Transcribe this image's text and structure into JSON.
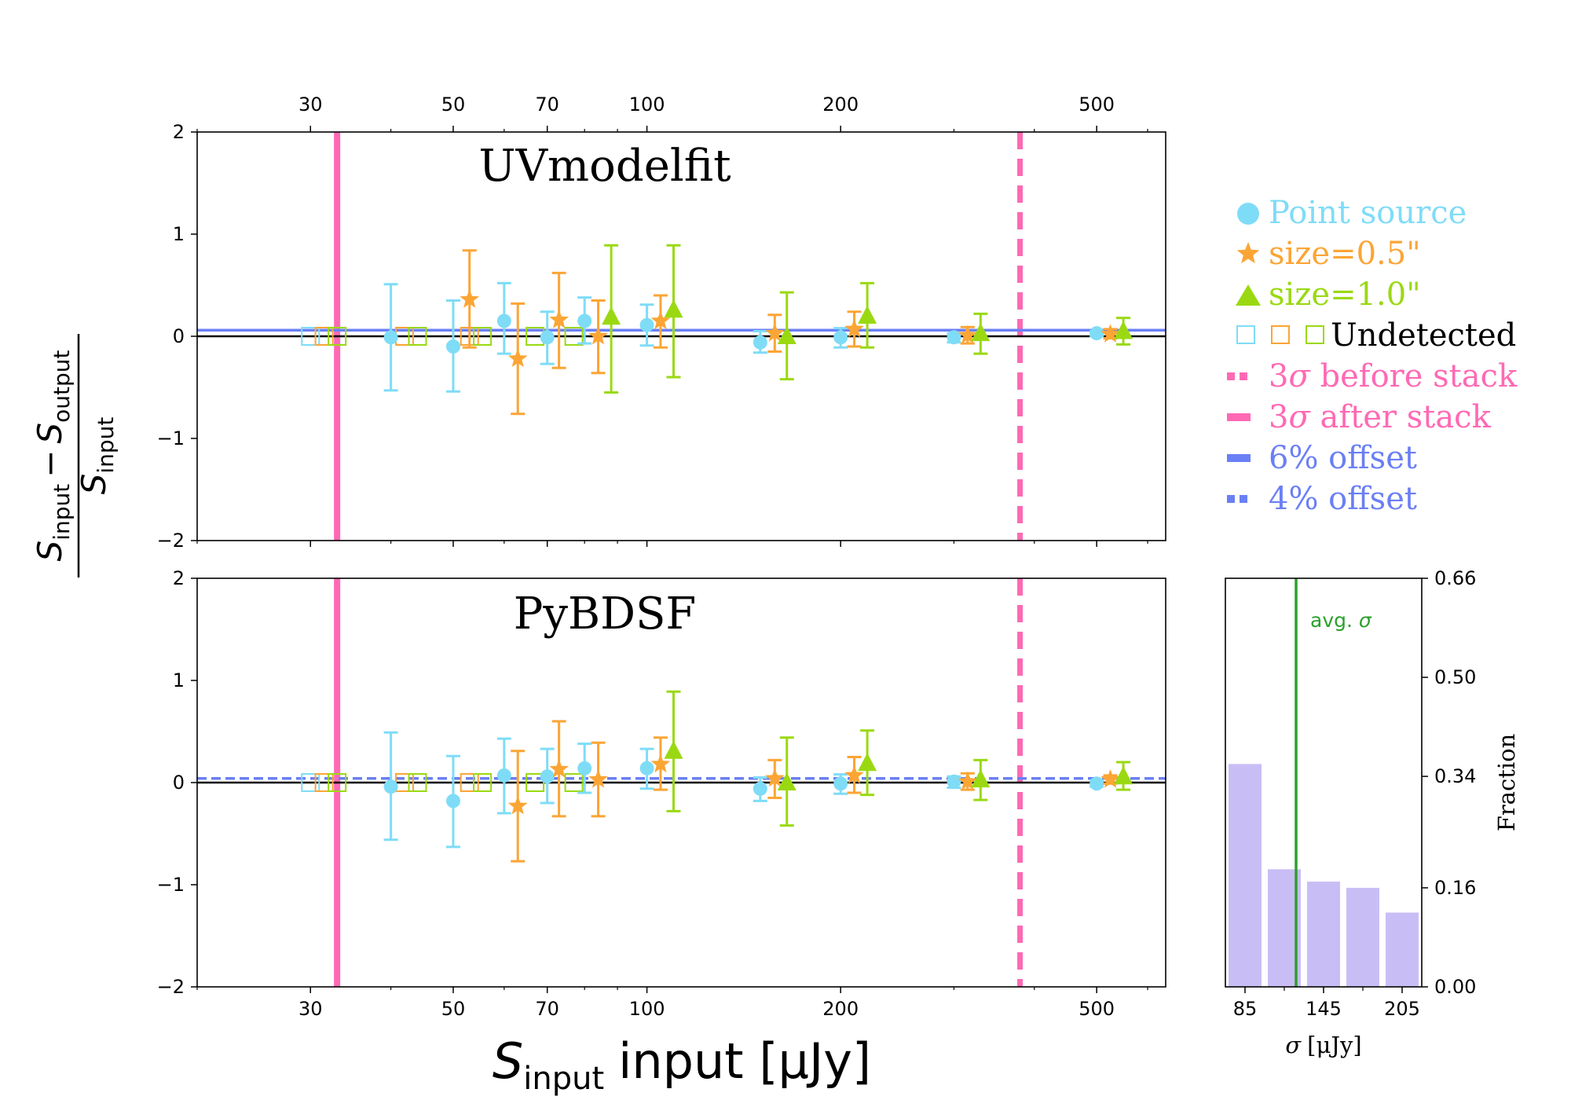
{
  "chart_data": [
    {
      "type": "scatter",
      "panel": "top",
      "title": "UVmodelfit",
      "xscale": "log",
      "xlim": [
        20,
        640
      ],
      "ylim": [
        -2,
        2
      ],
      "xticks": [
        "30",
        "50",
        "70",
        "100",
        "200",
        "500"
      ],
      "yticks": [
        "2",
        "1",
        "0",
        "−1",
        "−2"
      ],
      "offset_line": {
        "y": 0.06,
        "style": "solid",
        "label": "6% offset"
      },
      "threshold_after_stack": 33,
      "threshold_before_stack": 380,
      "series": [
        {
          "name": "Point source",
          "marker": "circle",
          "points": [
            {
              "x": 40,
              "y": -0.01,
              "lo": -0.53,
              "hi": 0.51
            },
            {
              "x": 50,
              "y": -0.1,
              "lo": -0.54,
              "hi": 0.35
            },
            {
              "x": 60,
              "y": 0.15,
              "lo": -0.17,
              "hi": 0.52
            },
            {
              "x": 70,
              "y": -0.01,
              "lo": -0.27,
              "hi": 0.24
            },
            {
              "x": 80,
              "y": 0.15,
              "lo": -0.07,
              "hi": 0.38
            },
            {
              "x": 100,
              "y": 0.11,
              "lo": -0.09,
              "hi": 0.31
            },
            {
              "x": 150,
              "y": -0.06,
              "lo": -0.16,
              "hi": 0.05
            },
            {
              "x": 200,
              "y": -0.01,
              "lo": -0.11,
              "hi": 0.08
            },
            {
              "x": 300,
              "y": -0.01,
              "lo": -0.06,
              "hi": 0.03
            },
            {
              "x": 500,
              "y": 0.03,
              "lo": 0.0,
              "hi": 0.05
            }
          ]
        },
        {
          "name": "size=0.5\"",
          "marker": "star",
          "points": [
            {
              "x": 53,
              "y": 0.36,
              "lo": -0.11,
              "hi": 0.84
            },
            {
              "x": 63,
              "y": -0.22,
              "lo": -0.76,
              "hi": 0.32
            },
            {
              "x": 73,
              "y": 0.16,
              "lo": -0.31,
              "hi": 0.62
            },
            {
              "x": 84,
              "y": 0.0,
              "lo": -0.36,
              "hi": 0.35
            },
            {
              "x": 105,
              "y": 0.15,
              "lo": -0.11,
              "hi": 0.4
            },
            {
              "x": 158,
              "y": 0.03,
              "lo": -0.15,
              "hi": 0.21
            },
            {
              "x": 210,
              "y": 0.07,
              "lo": -0.1,
              "hi": 0.24
            },
            {
              "x": 315,
              "y": 0.01,
              "lo": -0.07,
              "hi": 0.09
            },
            {
              "x": 525,
              "y": 0.02,
              "lo": -0.02,
              "hi": 0.07
            }
          ]
        },
        {
          "name": "size=1.0\"",
          "marker": "triangle",
          "points": [
            {
              "x": 88,
              "y": 0.19,
              "lo": -0.55,
              "hi": 0.89
            },
            {
              "x": 110,
              "y": 0.26,
              "lo": -0.4,
              "hi": 0.89
            },
            {
              "x": 165,
              "y": 0.0,
              "lo": -0.42,
              "hi": 0.43
            },
            {
              "x": 220,
              "y": 0.2,
              "lo": -0.11,
              "hi": 0.52
            },
            {
              "x": 330,
              "y": 0.03,
              "lo": -0.17,
              "hi": 0.22
            },
            {
              "x": 550,
              "y": 0.05,
              "lo": -0.08,
              "hi": 0.18
            }
          ]
        }
      ],
      "undetected": [
        {
          "x": 30,
          "group": "Point source"
        },
        {
          "x": 31.5,
          "group": "size=0.5\""
        },
        {
          "x": 33,
          "group": "size=1.0\""
        },
        {
          "x": 42,
          "group": "size=0.5\""
        },
        {
          "x": 44,
          "group": "size=1.0\""
        },
        {
          "x": 53,
          "group": "size=0.5\""
        },
        {
          "x": 55.5,
          "group": "size=1.0\""
        },
        {
          "x": 67,
          "group": "size=1.0\""
        },
        {
          "x": 77,
          "group": "size=1.0\""
        }
      ]
    },
    {
      "type": "scatter",
      "panel": "bottom",
      "title": "PyBDSF",
      "xscale": "log",
      "xlim": [
        20,
        640
      ],
      "ylim": [
        -2,
        2
      ],
      "xticks": [
        "30",
        "50",
        "70",
        "100",
        "200",
        "500"
      ],
      "yticks": [
        "2",
        "1",
        "0",
        "−1",
        "−2"
      ],
      "xlabel": "input [μJy]",
      "offset_line": {
        "y": 0.04,
        "style": "dashed",
        "label": "4% offset"
      },
      "threshold_after_stack": 33,
      "threshold_before_stack": 380,
      "series": [
        {
          "name": "Point source",
          "marker": "circle",
          "points": [
            {
              "x": 40,
              "y": -0.04,
              "lo": -0.56,
              "hi": 0.49
            },
            {
              "x": 50,
              "y": -0.18,
              "lo": -0.63,
              "hi": 0.26
            },
            {
              "x": 60,
              "y": 0.07,
              "lo": -0.3,
              "hi": 0.43
            },
            {
              "x": 70,
              "y": 0.06,
              "lo": -0.2,
              "hi": 0.33
            },
            {
              "x": 80,
              "y": 0.14,
              "lo": -0.1,
              "hi": 0.38
            },
            {
              "x": 100,
              "y": 0.14,
              "lo": -0.06,
              "hi": 0.33
            },
            {
              "x": 150,
              "y": -0.06,
              "lo": -0.18,
              "hi": 0.05
            },
            {
              "x": 200,
              "y": -0.01,
              "lo": -0.11,
              "hi": 0.08
            },
            {
              "x": 300,
              "y": 0.01,
              "lo": -0.05,
              "hi": 0.06
            },
            {
              "x": 500,
              "y": -0.01,
              "lo": -0.04,
              "hi": 0.02
            }
          ]
        },
        {
          "name": "size=0.5\"",
          "marker": "star",
          "points": [
            {
              "x": 63,
              "y": -0.23,
              "lo": -0.77,
              "hi": 0.31
            },
            {
              "x": 73,
              "y": 0.13,
              "lo": -0.33,
              "hi": 0.6
            },
            {
              "x": 84,
              "y": 0.03,
              "lo": -0.33,
              "hi": 0.39
            },
            {
              "x": 105,
              "y": 0.18,
              "lo": -0.07,
              "hi": 0.44
            },
            {
              "x": 158,
              "y": 0.04,
              "lo": -0.15,
              "hi": 0.22
            },
            {
              "x": 210,
              "y": 0.07,
              "lo": -0.1,
              "hi": 0.25
            },
            {
              "x": 315,
              "y": 0.01,
              "lo": -0.07,
              "hi": 0.09
            },
            {
              "x": 525,
              "y": 0.03,
              "lo": -0.01,
              "hi": 0.07
            }
          ]
        },
        {
          "name": "size=1.0\"",
          "marker": "triangle",
          "points": [
            {
              "x": 110,
              "y": 0.31,
              "lo": -0.28,
              "hi": 0.89
            },
            {
              "x": 165,
              "y": 0.0,
              "lo": -0.42,
              "hi": 0.44
            },
            {
              "x": 220,
              "y": 0.19,
              "lo": -0.12,
              "hi": 0.51
            },
            {
              "x": 330,
              "y": 0.03,
              "lo": -0.17,
              "hi": 0.22
            },
            {
              "x": 550,
              "y": 0.06,
              "lo": -0.07,
              "hi": 0.2
            }
          ]
        }
      ],
      "undetected": [
        {
          "x": 30,
          "group": "Point source"
        },
        {
          "x": 31.5,
          "group": "size=0.5\""
        },
        {
          "x": 33,
          "group": "size=1.0\""
        },
        {
          "x": 42,
          "group": "size=0.5\""
        },
        {
          "x": 44,
          "group": "size=1.0\""
        },
        {
          "x": 53,
          "group": "size=0.5\""
        },
        {
          "x": 55.5,
          "group": "size=1.0\""
        },
        {
          "x": 67,
          "group": "size=1.0\""
        },
        {
          "x": 77,
          "group": "size=1.0\""
        }
      ]
    },
    {
      "type": "bar",
      "panel": "histogram",
      "xlabel": "[μJy]",
      "ylabel": "Fraction",
      "annotation": "avg. ",
      "avg_sigma": 124,
      "bin_edges": [
        70,
        100,
        130,
        160,
        190,
        220
      ],
      "values": [
        0.36,
        0.19,
        0.17,
        0.16,
        0.12
      ],
      "xlim": [
        70,
        220
      ],
      "ylim": [
        0,
        0.66
      ],
      "xticks": [
        "85",
        "145",
        "205"
      ],
      "yticks": [
        "0.66",
        "0.50",
        "0.34",
        "0.16",
        "0.00"
      ]
    }
  ],
  "ylabel": {
    "num_left": "input",
    "minus": "−",
    "num_right": "output",
    "den": "input"
  },
  "legend": {
    "point_source": "Point source",
    "size05": "size=0.5\"",
    "size10": "size=1.0\"",
    "undetected": "Undetected",
    "before_prefix": "3",
    "before_suffix": " before stack",
    "after_prefix": "3",
    "after_suffix": " after stack",
    "offset6": "6% offset",
    "offset4": "4% offset"
  },
  "symbols": {
    "S": "S",
    "sigma": "σ"
  },
  "colors": {
    "point": "#7fdcf7",
    "size05": "#fba535",
    "size10": "#9ad912",
    "pink": "#ff69b4",
    "blue": "#6a7ff5",
    "hist": "#c9bdf6",
    "avg": "#2ca02c",
    "black": "#000000"
  }
}
